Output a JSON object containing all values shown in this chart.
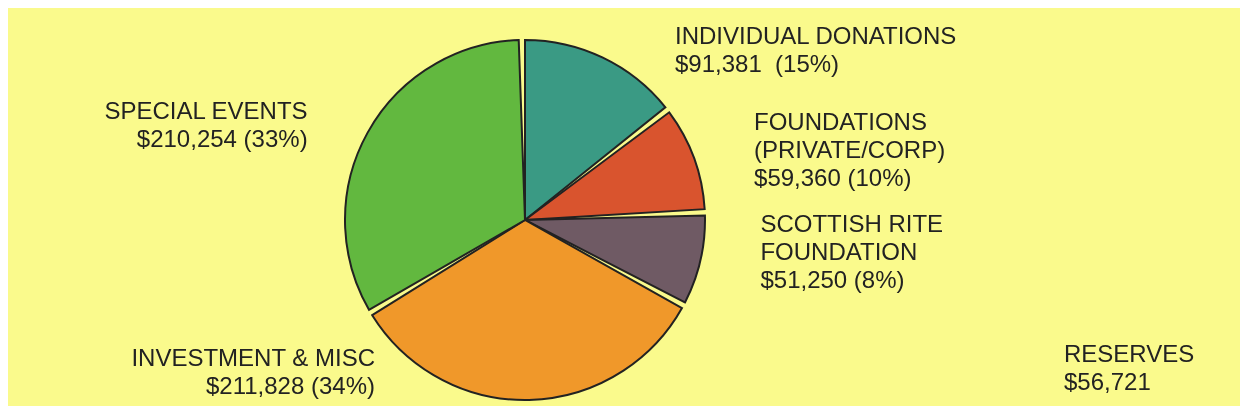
{
  "chart_data": {
    "type": "pie",
    "categories": [
      "INDIVIDUAL DONATIONS",
      "FOUNDATIONS (PRIVATE/CORP)",
      "SCOTTISH RITE FOUNDATION",
      "INVESTMENT & MISC",
      "SPECIAL EVENTS"
    ],
    "values": [
      91381,
      59360,
      51250,
      211828,
      210254
    ],
    "value_labels": [
      "$91,381  (15%)",
      "$59,360 (10%)",
      "$51,250 (8%)",
      "$211,828 (34%)",
      "$210,254 (33%)"
    ],
    "colors": [
      "#3a9a84",
      "#d9542e",
      "#6f5a64",
      "#f0982a",
      "#62b83f"
    ],
    "annotations": [
      "RESERVES $56,721"
    ]
  }
}
